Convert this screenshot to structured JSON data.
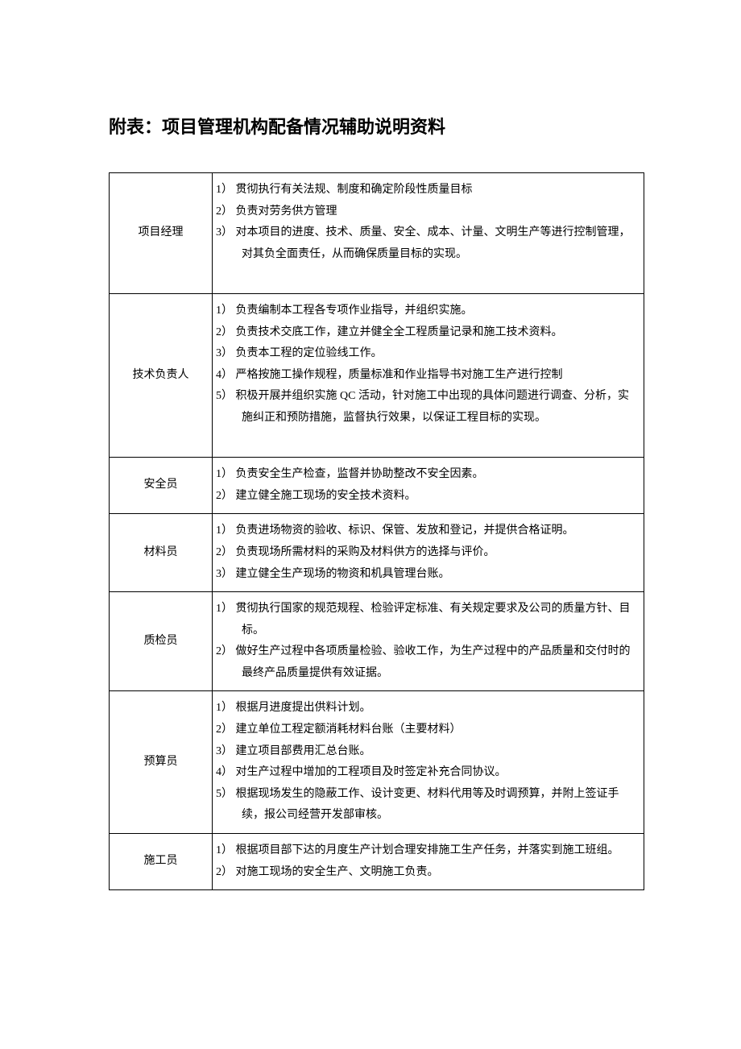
{
  "title": "附表：项目管理机构配备情况辅助说明资料",
  "rows": [
    {
      "role": "项目经理",
      "items": [
        {
          "n": "1）",
          "t": "贯彻执行有关法规、制度和确定阶段性质量目标"
        },
        {
          "n": "2）",
          "t": "负责对劳务供方管理"
        },
        {
          "n": "3）",
          "t": "对本项目的进度、技术、质量、安全、成本、计量、文明生产等进行控制管理，对其负全面责任，从而确保质量目标的实现。"
        }
      ]
    },
    {
      "role": "技术负责人",
      "items": [
        {
          "n": "1）",
          "t": "负责编制本工程各专项作业指导，并组织实施。"
        },
        {
          "n": "2）",
          "t": "负责技术交底工作，建立并健全全工程质量记录和施工技术资料。"
        },
        {
          "n": "3）",
          "t": "负责本工程的定位验线工作。"
        },
        {
          "n": "4）",
          "t": "严格按施工操作规程，质量标准和作业指导书对施工生产进行控制"
        },
        {
          "n": "5）",
          "t": "积极开展并组织实施 QC 活动，针对施工中出现的具体问题进行调查、分析，实施纠正和预防措施，监督执行效果，以保证工程目标的实现。"
        }
      ]
    },
    {
      "role": "安全员",
      "items": [
        {
          "n": "1）",
          "t": "负责安全生产检查，监督并协助整改不安全因素。"
        },
        {
          "n": "2）",
          "t": "建立健全施工现场的安全技术资料。"
        }
      ]
    },
    {
      "role": "材料员",
      "items": [
        {
          "n": "1）",
          "t": "负责进场物资的验收、标识、保管、发放和登记，并提供合格证明。"
        },
        {
          "n": "2）",
          "t": "负责现场所需材料的采购及材料供方的选择与评价。"
        },
        {
          "n": "3）",
          "t": "建立健全生产现场的物资和机具管理台账。"
        }
      ]
    },
    {
      "role": "质检员",
      "items": [
        {
          "n": "1）",
          "t": "贯彻执行国家的规范规程、检验评定标准、有关规定要求及公司的质量方针、目标。"
        },
        {
          "n": "2）",
          "t": "做好生产过程中各项质量检验、验收工作，为生产过程中的产品质量和交付时的最终产品质量提供有效证据。"
        }
      ]
    },
    {
      "role": "预算员",
      "items": [
        {
          "n": "1）",
          "t": "根据月进度提出供料计划。"
        },
        {
          "n": "2）",
          "t": "建立单位工程定额消耗材料台账（主要材料）"
        },
        {
          "n": "3）",
          "t": "建立项目部费用汇总台账。"
        },
        {
          "n": "4）",
          "t": "对生产过程中增加的工程项目及时签定补充合同协议。"
        },
        {
          "n": "5）",
          "t": "根据现场发生的隐蔽工作、设计变更、材料代用等及时调预算，并附上签证手续，报公司经营开发部审核。"
        }
      ]
    },
    {
      "role": "施工员",
      "items": [
        {
          "n": "1）",
          "t": "根据项目部下达的月度生产计划合理安排施工生产任务，并落实到施工班组。"
        },
        {
          "n": "2）",
          "t": "对施工现场的安全生产、文明施工负责。"
        }
      ]
    }
  ]
}
